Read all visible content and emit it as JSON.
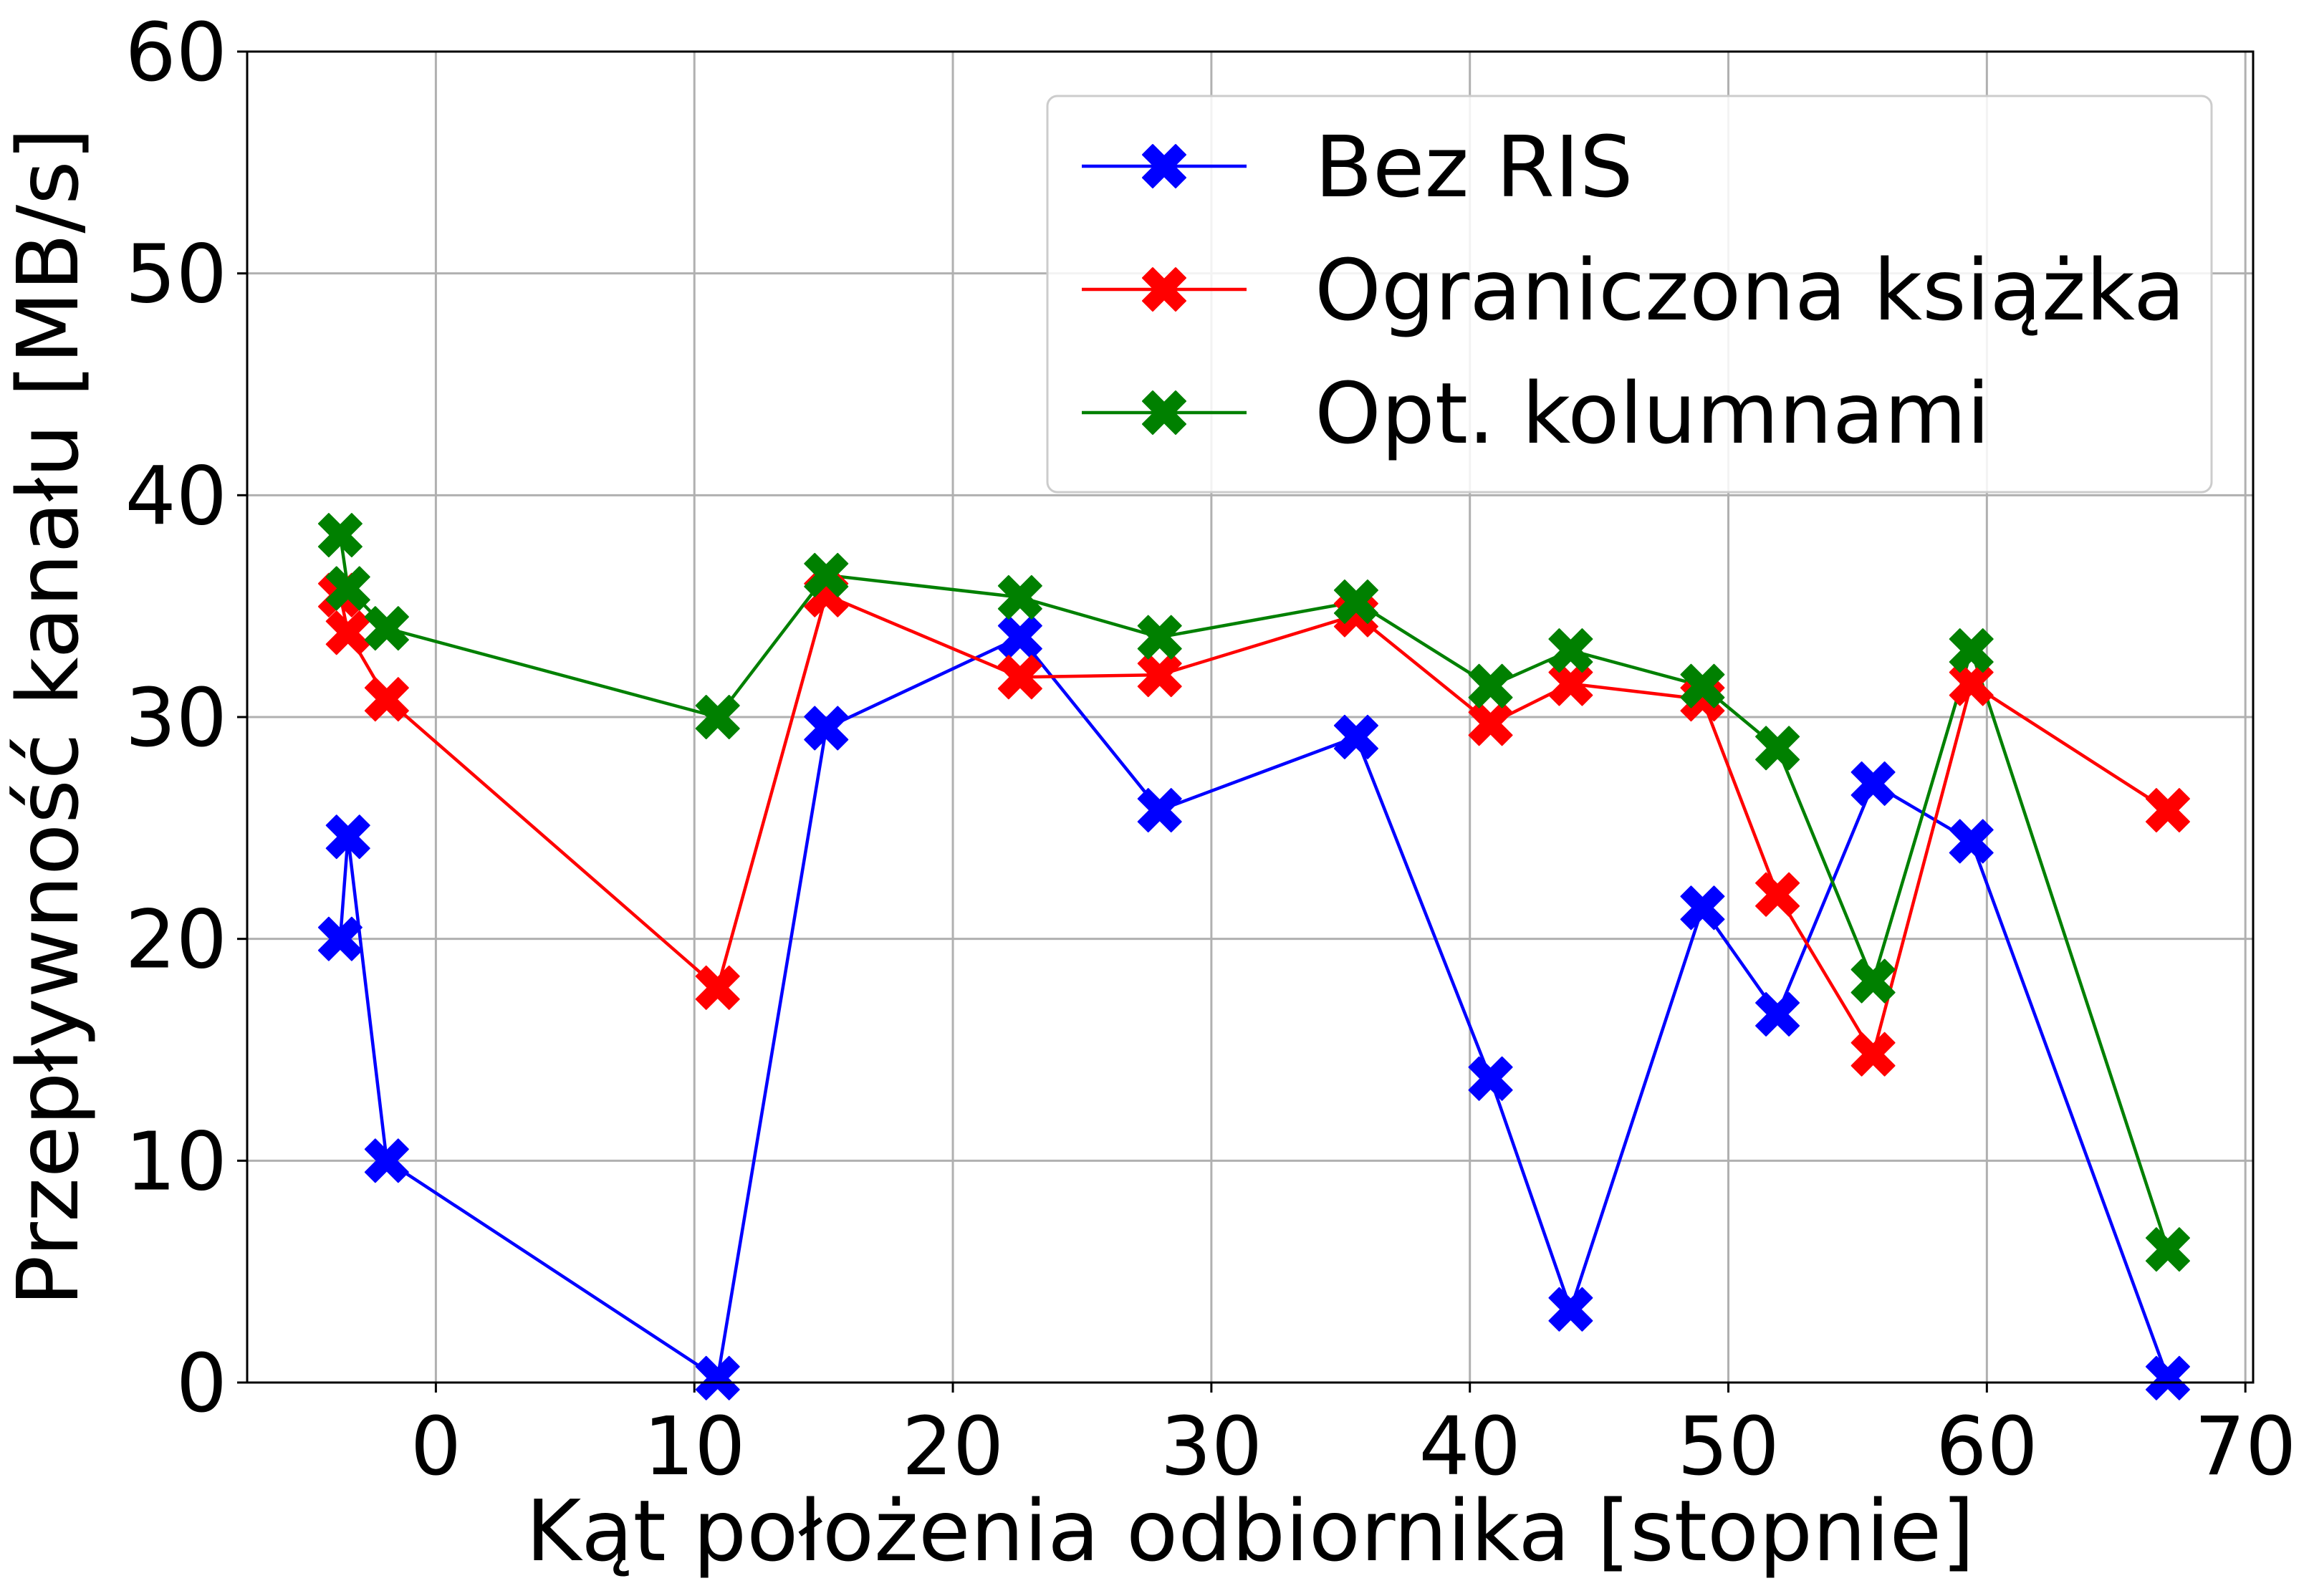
{
  "chart_data": {
    "type": "line",
    "title": "",
    "xlabel": "Kąt położenia odbiornika [stopnie]",
    "ylabel": "Przepływność kanału [MB/s]",
    "xlim": [
      -7.3,
      70.3
    ],
    "ylim": [
      0,
      60
    ],
    "xticks": [
      0,
      10,
      20,
      30,
      40,
      50,
      60,
      70
    ],
    "yticks": [
      0,
      10,
      20,
      30,
      40,
      50,
      60
    ],
    "grid": true,
    "legend_position": "top-right",
    "marker": "X",
    "series": [
      {
        "name": "Bez RIS",
        "color": "#0000ff",
        "points": [
          [
            -3.7,
            20.0
          ],
          [
            -3.4,
            24.6
          ],
          [
            -1.9,
            10.0
          ],
          [
            10.9,
            0.2
          ],
          [
            15.1,
            29.5
          ],
          [
            22.6,
            33.6
          ],
          [
            28.0,
            25.8
          ],
          [
            35.6,
            29.1
          ],
          [
            40.8,
            13.7
          ],
          [
            43.9,
            3.3
          ],
          [
            49.0,
            21.4
          ],
          [
            51.9,
            16.6
          ],
          [
            55.6,
            27.0
          ],
          [
            59.4,
            24.4
          ],
          [
            67.0,
            0.2
          ]
        ]
      },
      {
        "name": "Ograniczona książka",
        "color": "#ff0000",
        "points": [
          [
            -3.7,
            35.5
          ],
          [
            -3.4,
            33.8
          ],
          [
            -1.9,
            30.8
          ],
          [
            10.9,
            17.8
          ],
          [
            15.1,
            35.5
          ],
          [
            22.6,
            31.8
          ],
          [
            28.0,
            31.9
          ],
          [
            35.6,
            34.6
          ],
          [
            40.8,
            29.7
          ],
          [
            43.9,
            31.5
          ],
          [
            49.0,
            30.8
          ],
          [
            51.9,
            22.0
          ],
          [
            55.6,
            14.8
          ],
          [
            59.4,
            31.5
          ],
          [
            67.0,
            25.8
          ]
        ]
      },
      {
        "name": "Opt. kolumnami",
        "color": "#008000",
        "points": [
          [
            -3.7,
            38.2
          ],
          [
            -3.4,
            35.8
          ],
          [
            -1.9,
            34.0
          ],
          [
            10.9,
            30.0
          ],
          [
            15.1,
            36.4
          ],
          [
            22.6,
            35.4
          ],
          [
            28.0,
            33.6
          ],
          [
            35.6,
            35.2
          ],
          [
            40.8,
            31.4
          ],
          [
            43.9,
            33.0
          ],
          [
            49.0,
            31.4
          ],
          [
            51.9,
            28.6
          ],
          [
            55.6,
            18.1
          ],
          [
            59.4,
            33.0
          ],
          [
            67.0,
            6.0
          ]
        ]
      }
    ]
  }
}
